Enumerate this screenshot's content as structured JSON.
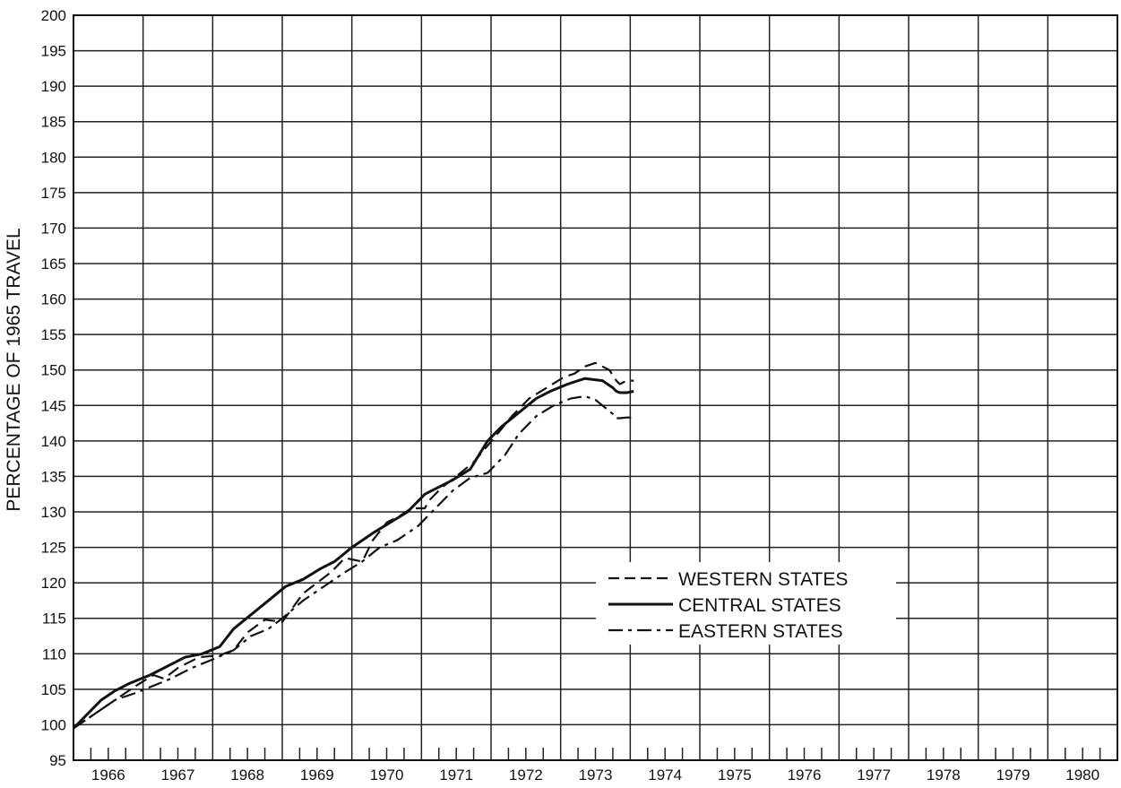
{
  "chart_data": {
    "type": "line",
    "title": "",
    "xlabel": "",
    "ylabel": "PERCENTAGE OF 1965 TRAVEL",
    "xlim": [
      1965.7,
      1981.0
    ],
    "ylim": [
      95,
      200
    ],
    "ytick_step": 5,
    "yticks": [
      "95",
      "100",
      "105",
      "110",
      "115",
      "120",
      "125",
      "130",
      "135",
      "140",
      "145",
      "150",
      "155",
      "160",
      "165",
      "170",
      "175",
      "180",
      "185",
      "190",
      "195",
      "200"
    ],
    "xtick_labels": [
      "1966",
      "1967",
      "1968",
      "1969",
      "1970",
      "1971",
      "1972",
      "1973",
      "1974",
      "1975",
      "1976",
      "1977",
      "1978",
      "1979",
      "1980"
    ],
    "grid": true,
    "minor_ticks": "quarterly",
    "legend_placement": "lower-center",
    "series": [
      {
        "name": "WESTERN STATES",
        "style": "dashed",
        "color": "#111111",
        "x": [
          1965.7,
          1966.0,
          1966.3,
          1966.6,
          1966.85,
          1967.0,
          1967.2,
          1967.5,
          1967.8,
          1968.0,
          1968.2,
          1968.45,
          1968.7,
          1969.0,
          1969.2,
          1969.4,
          1969.6,
          1969.85,
          1970.0,
          1970.2,
          1970.4,
          1970.55,
          1970.75,
          1970.8,
          1971.0,
          1971.2,
          1971.45,
          1971.75,
          1972.0,
          1972.25,
          1972.5,
          1972.75,
          1972.9,
          1973.05,
          1973.2,
          1973.3,
          1973.4,
          1973.5,
          1973.55,
          1973.65,
          1973.75
        ],
        "y": [
          99.5,
          101.5,
          103.5,
          105.5,
          107.0,
          106.5,
          108.0,
          109.5,
          109.8,
          110.5,
          113.0,
          114.8,
          114.5,
          118.5,
          120.0,
          121.5,
          123.5,
          123.0,
          126.0,
          128.5,
          129.5,
          130.5,
          130.5,
          131.5,
          133.5,
          135.0,
          137.0,
          140.5,
          143.5,
          146.0,
          147.5,
          149.0,
          149.5,
          150.5,
          151.0,
          150.5,
          150.0,
          148.5,
          148.0,
          148.5,
          148.5
        ]
      },
      {
        "name": "CENTRAL STATES",
        "style": "solid",
        "color": "#111111",
        "x": [
          1965.7,
          1965.9,
          1966.1,
          1966.3,
          1966.5,
          1966.8,
          1967.0,
          1967.3,
          1967.55,
          1967.8,
          1968.0,
          1968.25,
          1968.5,
          1968.75,
          1969.0,
          1969.25,
          1969.45,
          1969.7,
          1970.0,
          1970.25,
          1970.5,
          1970.75,
          1970.95,
          1971.15,
          1971.4,
          1971.65,
          1971.85,
          1972.1,
          1972.35,
          1972.55,
          1972.8,
          1973.05,
          1973.3,
          1973.45,
          1973.5,
          1973.55,
          1973.65,
          1973.75
        ],
        "y": [
          99.5,
          101.5,
          103.5,
          104.8,
          105.8,
          107.0,
          108.0,
          109.5,
          110.0,
          111.0,
          113.5,
          115.5,
          117.5,
          119.5,
          120.5,
          122.0,
          123.0,
          125.0,
          127.0,
          128.5,
          130.0,
          132.5,
          133.5,
          134.5,
          136.0,
          140.0,
          142.0,
          144.0,
          146.0,
          147.0,
          148.0,
          148.8,
          148.5,
          147.5,
          147.0,
          146.8,
          146.8,
          147.0
        ]
      },
      {
        "name": "EASTERN STATES",
        "style": "dash-dot",
        "color": "#111111",
        "x": [
          1965.7,
          1966.0,
          1966.3,
          1966.6,
          1966.85,
          1967.1,
          1967.4,
          1967.7,
          1968.0,
          1968.25,
          1968.5,
          1968.7,
          1969.0,
          1969.3,
          1969.6,
          1969.85,
          1970.1,
          1970.35,
          1970.65,
          1970.9,
          1971.15,
          1971.4,
          1971.65,
          1971.9,
          1972.1,
          1972.35,
          1972.6,
          1972.85,
          1973.05,
          1973.2,
          1973.3,
          1973.45,
          1973.5,
          1973.55,
          1973.65,
          1973.75
        ],
        "y": [
          99.5,
          101.5,
          103.5,
          104.5,
          105.5,
          106.5,
          108.0,
          109.2,
          110.5,
          112.5,
          113.5,
          115.0,
          117.5,
          119.5,
          121.5,
          123.0,
          125.0,
          126.0,
          128.0,
          130.5,
          133.0,
          134.8,
          135.5,
          138.0,
          141.0,
          143.5,
          145.0,
          146.0,
          146.3,
          145.8,
          145.0,
          143.8,
          143.2,
          143.2,
          143.3,
          143.3
        ]
      }
    ]
  }
}
